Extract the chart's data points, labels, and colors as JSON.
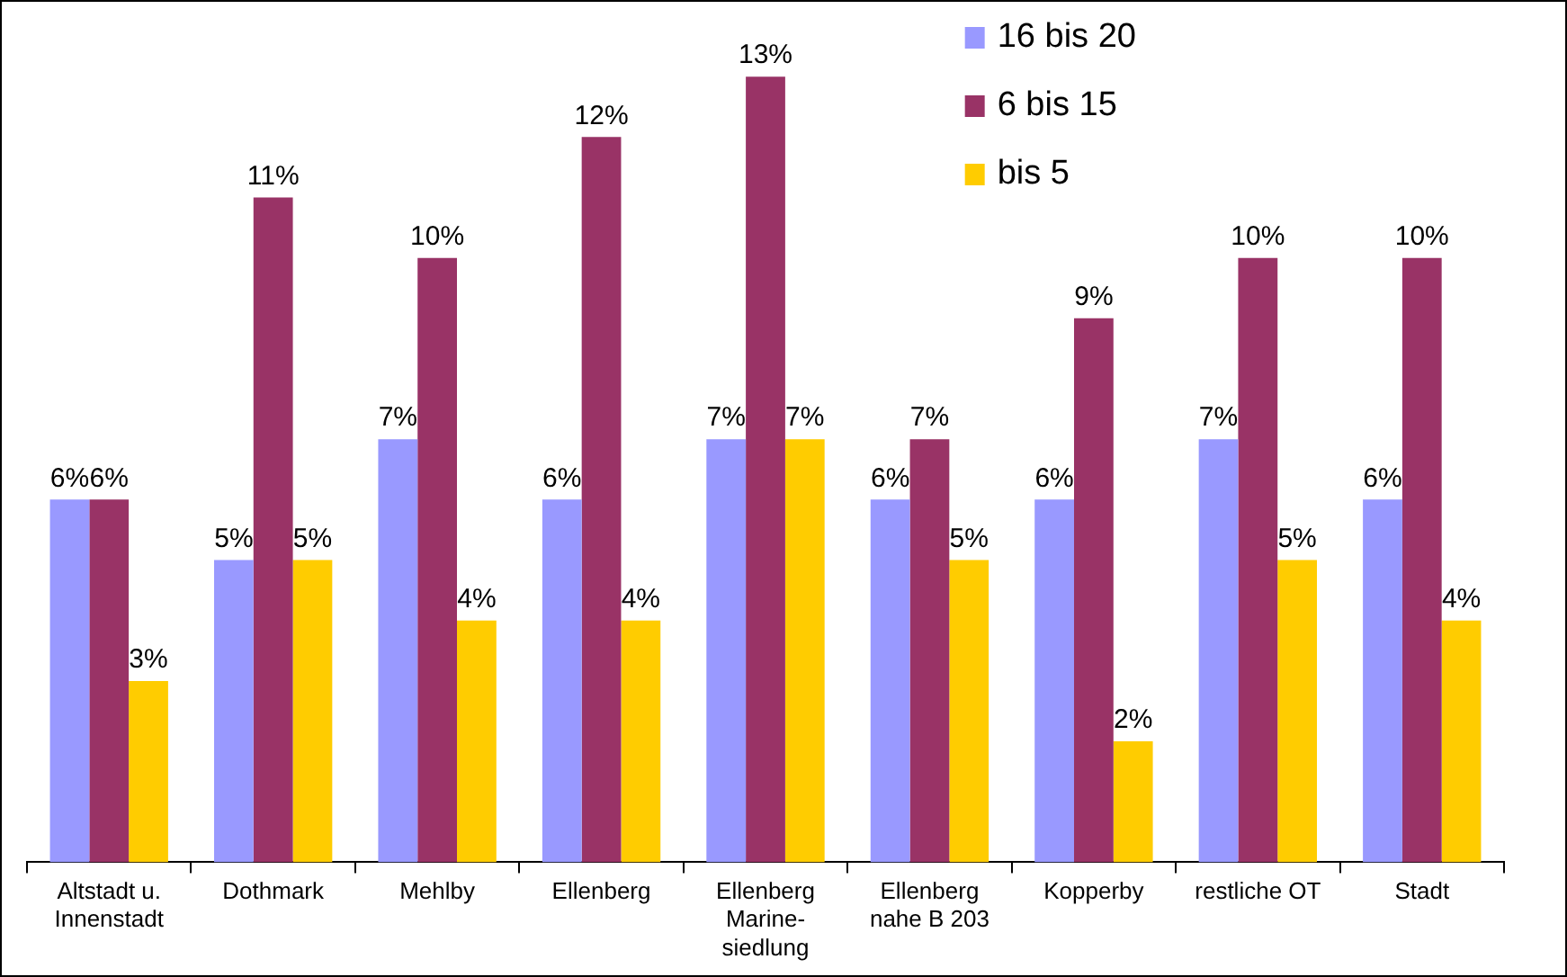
{
  "chart_data": {
    "type": "bar",
    "categories": [
      "Altstadt u.\nInnenstadt",
      "Dothmark",
      "Mehlby",
      "Ellenberg",
      "Ellenberg\nMarine-\nsiedlung",
      "Ellenberg\nnahe B 203",
      "Kopperby",
      "restliche OT",
      "Stadt"
    ],
    "series": [
      {
        "name": "16 bis 20",
        "color": "#9999ff",
        "values": [
          6,
          5,
          7,
          6,
          7,
          6,
          6,
          7,
          6
        ],
        "value_labels": [
          "6%",
          "5%",
          "7%",
          "6%",
          "7%",
          "6%",
          "6%",
          "7%",
          "6%"
        ]
      },
      {
        "name": "6 bis 15",
        "color": "#993366",
        "values": [
          6,
          11,
          10,
          12,
          13,
          7,
          9,
          10,
          10
        ],
        "value_labels": [
          "6%",
          "11%",
          "10%",
          "12%",
          "13%",
          "7%",
          "9%",
          "10%",
          "10%"
        ]
      },
      {
        "name": "bis 5",
        "color": "#ffcc00",
        "values": [
          3,
          5,
          4,
          4,
          7,
          5,
          2,
          5,
          4
        ],
        "value_labels": [
          "3%",
          "5%",
          "4%",
          "4%",
          "7%",
          "5%",
          "2%",
          "5%",
          "4%"
        ]
      }
    ],
    "legend": "top right",
    "grid": false
  }
}
